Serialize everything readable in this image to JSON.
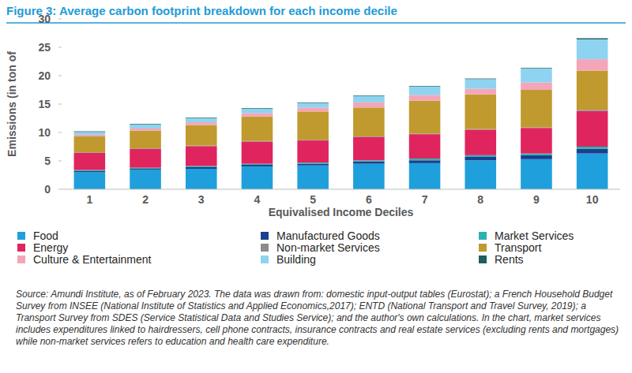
{
  "chart_data": {
    "type": "bar",
    "stacked": true,
    "title": "Figure 3: Average carbon footprint breakdown for each income decile",
    "y_label": "Emissions (in ton of",
    "x_label": "Equivalised Income Deciles",
    "source": "Source: Amundi Institute, as of February 2023. The data was drawn from: domestic input-output tables (Eurostat); a French Household Budget Survey from INSEE (National Institute of Statistics and Applied Economics,2017); ENTD (National Transport and Travel Survey, 2019); a Transport Survey from SDES (Service Statistical Data and Studies Service); and the author's own calculations. In the chart, market services includes expenditures linked to hairdressers, cell phone contracts, insurance contracts and real estate services (excluding rents and mortgages) while non-market services refers to education and health care expenditure.",
    "categories": [
      "1",
      "2",
      "3",
      "4",
      "5",
      "6",
      "7",
      "8",
      "9",
      "10"
    ],
    "ylim": [
      0,
      30
    ],
    "yticks": [
      0,
      5,
      10,
      15,
      20,
      25,
      30
    ],
    "grid": false,
    "legend": "bottom",
    "series": [
      {
        "name": "Food",
        "color": "#1fa0dc",
        "values": [
          3.0,
          3.4,
          3.6,
          4.0,
          4.2,
          4.5,
          4.6,
          5.1,
          5.3,
          6.3
        ]
      },
      {
        "name": "Manufactured Goods",
        "color": "#1b3f8f",
        "values": [
          0.2,
          0.2,
          0.3,
          0.3,
          0.3,
          0.4,
          0.5,
          0.6,
          0.7,
          0.8
        ]
      },
      {
        "name": "Market Services",
        "color": "#2ab3b0",
        "values": [
          0.2,
          0.2,
          0.2,
          0.2,
          0.2,
          0.2,
          0.3,
          0.3,
          0.3,
          0.4
        ]
      },
      {
        "name": "Energy",
        "color": "#e0245e",
        "values": [
          3.0,
          3.3,
          3.5,
          3.9,
          3.9,
          4.1,
          4.3,
          4.5,
          4.5,
          6.3
        ]
      },
      {
        "name": "Non-market Services",
        "color": "#8c8c8c",
        "values": [
          0.1,
          0.1,
          0.1,
          0.1,
          0.1,
          0.1,
          0.1,
          0.1,
          0.1,
          0.2
        ]
      },
      {
        "name": "Transport",
        "color": "#c09a2e",
        "values": [
          2.8,
          3.1,
          3.6,
          4.3,
          5.0,
          5.1,
          5.8,
          6.1,
          6.6,
          6.9
        ]
      },
      {
        "name": "Culture & Entertainment",
        "color": "#f4a6b8",
        "values": [
          0.3,
          0.4,
          0.5,
          0.6,
          0.7,
          0.9,
          1.0,
          1.0,
          1.3,
          2.0
        ]
      },
      {
        "name": "Building",
        "color": "#8ed4f0",
        "values": [
          0.5,
          0.7,
          0.7,
          0.8,
          0.8,
          1.1,
          1.5,
          1.7,
          2.5,
          3.5
        ]
      },
      {
        "name": "Rents",
        "color": "#1f5e5e",
        "values": [
          0.1,
          0.1,
          0.1,
          0.1,
          0.1,
          0.1,
          0.1,
          0.1,
          0.1,
          0.2
        ]
      }
    ]
  }
}
